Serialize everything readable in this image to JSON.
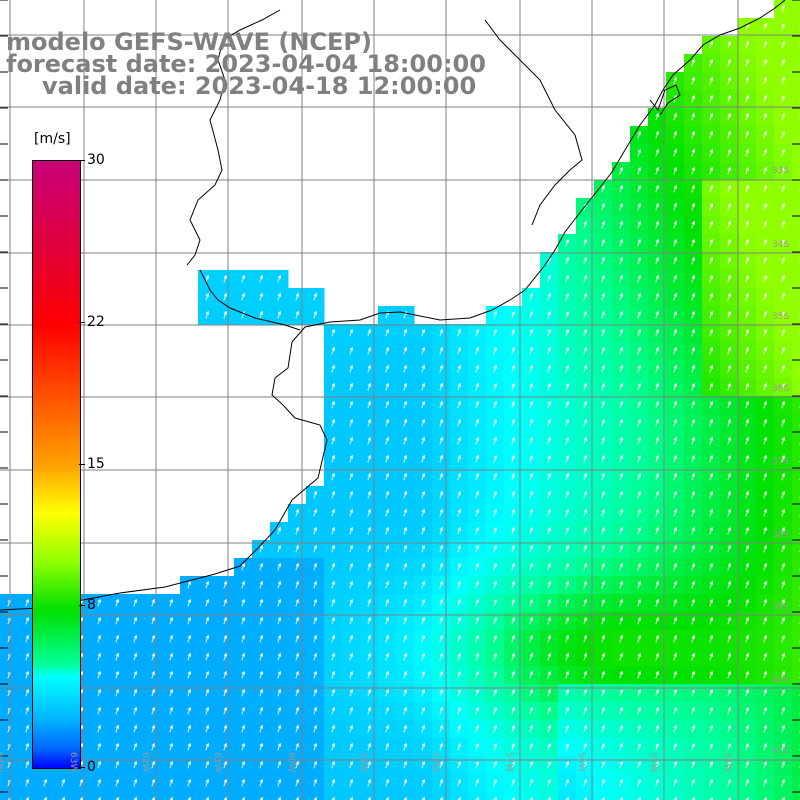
{
  "title": {
    "line1": "modelo GEFS-WAVE (NCEP)",
    "line2": "forecast date: 2023-04-04 18:00:00",
    "line3": "valid date: 2023-04-18 12:00:00"
  },
  "colorbar": {
    "unit": "[m/s]",
    "ticks": [
      {
        "label": "30",
        "value": 30
      },
      {
        "label": "22",
        "value": 22
      },
      {
        "label": "15",
        "value": 15
      },
      {
        "label": "8",
        "value": 8
      },
      {
        "label": "0",
        "value": 0
      }
    ],
    "colors": [
      "#0000ff",
      "#0064ff",
      "#00b4ff",
      "#00ffff",
      "#00ff9a",
      "#00e000",
      "#90ff00",
      "#ffff00",
      "#ffa000",
      "#ff5a00",
      "#ff0000",
      "#e0003c",
      "#c8007a"
    ]
  },
  "map": {
    "latitude_labels": [
      "33S",
      "34S",
      "35S",
      "36S",
      "37S",
      "38S",
      "39S",
      "40S",
      "41S"
    ],
    "longitude_labels": [
      "64W",
      "63W",
      "62W",
      "61W",
      "60W",
      "59W",
      "58W",
      "57W",
      "56W",
      "55W",
      "54W"
    ],
    "grid_color": "#808080",
    "land_color": "#ffffff",
    "arrow_color": "#ffffff"
  }
}
